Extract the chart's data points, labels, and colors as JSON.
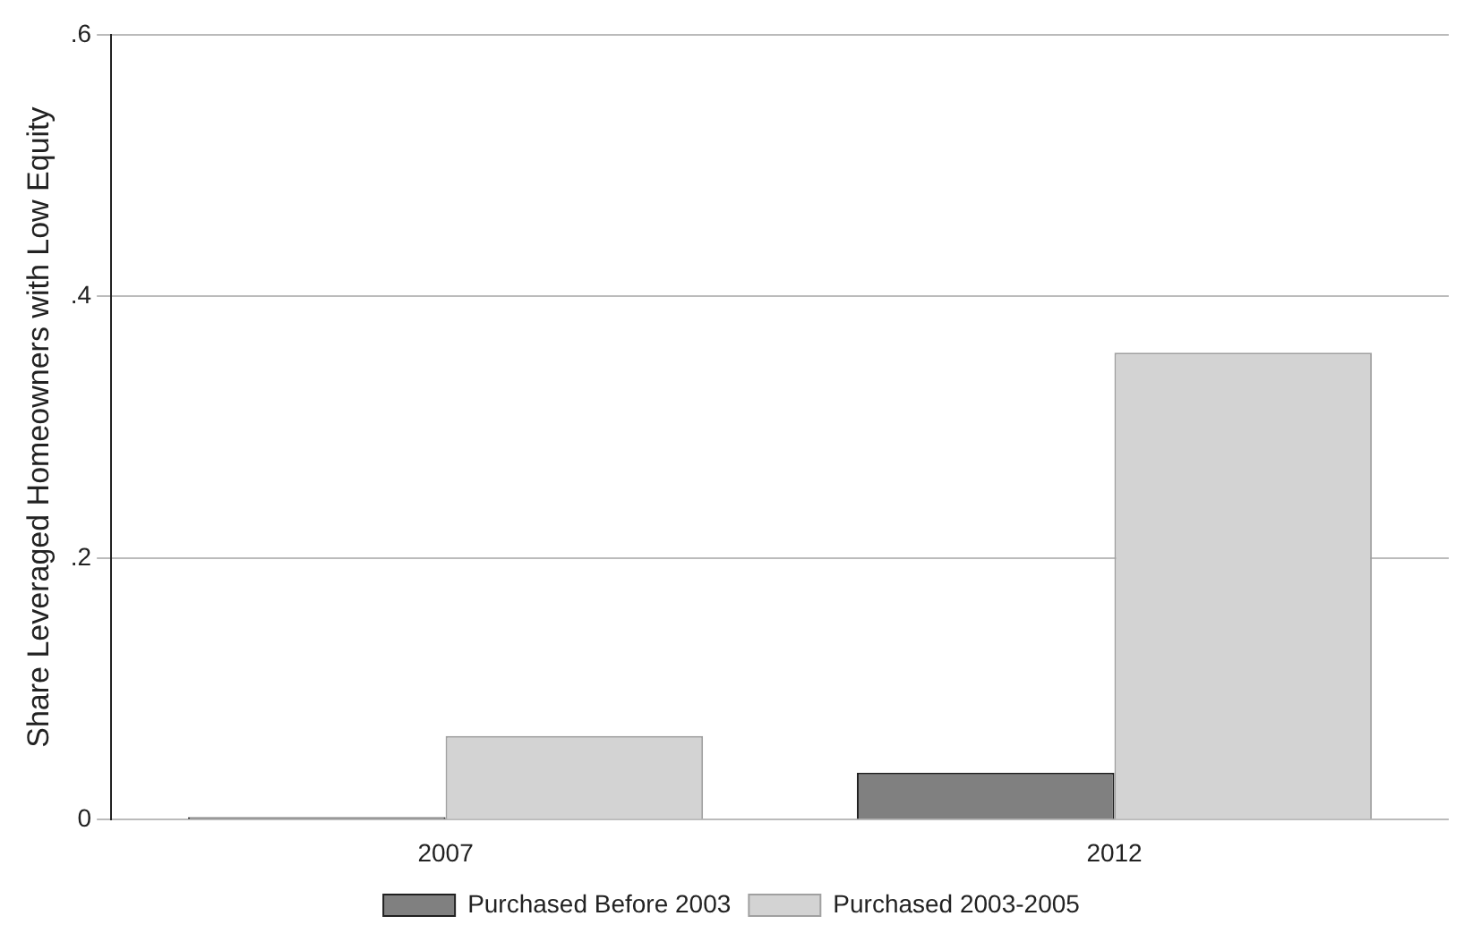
{
  "chart_data": {
    "type": "bar",
    "ylabel": "Share Leveraged Homeowners with Low Equity",
    "categories": [
      "2007",
      "2012"
    ],
    "series": [
      {
        "name": "Purchased Before 2003",
        "color": "#808080",
        "values": [
          0.002,
          0.036
        ]
      },
      {
        "name": "Purchased 2003-2005",
        "color": "#d3d3d3",
        "values": [
          0.064,
          0.357
        ]
      }
    ],
    "ylim": [
      0,
      0.6
    ],
    "yticks": [
      {
        "value": 0,
        "label": "0"
      },
      {
        "value": 0.2,
        "label": ".2"
      },
      {
        "value": 0.4,
        "label": ".4"
      },
      {
        "value": 0.6,
        "label": ".6"
      }
    ],
    "grid": "y",
    "legend": "bottom"
  }
}
